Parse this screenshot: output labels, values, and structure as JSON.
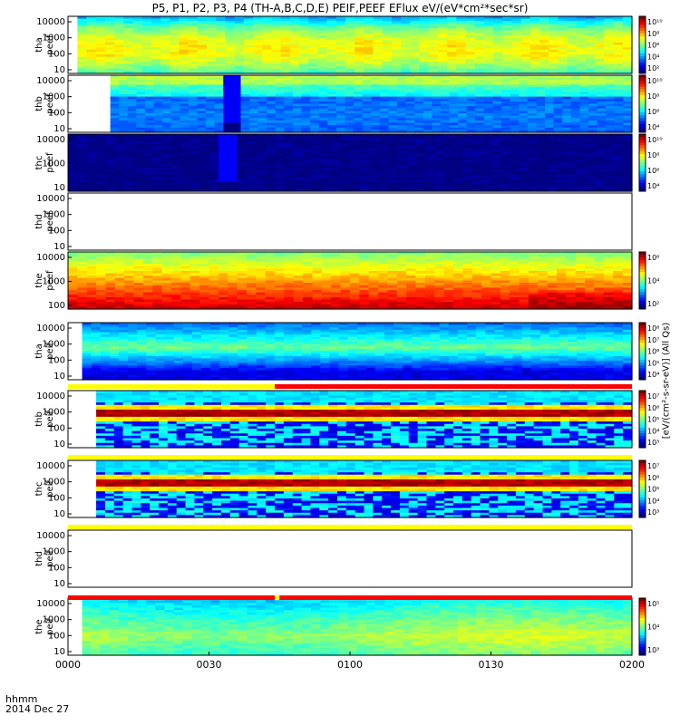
{
  "title": "P5, P1, P2, P3, P4 (TH-A,B,C,D,E) PEIF,PEEF EFlux eV/(eV*cm²*sec*sr)",
  "colorbar_title": "[eV/(cm²-s-sr-eV)] (All Qs)",
  "time_row_label": "hhmm",
  "date_label": "2014 Dec 27",
  "chart_data": {
    "type": "heatmap",
    "x_ticks": [
      "0000",
      "0030",
      "0100",
      "0130",
      "0200"
    ],
    "x_range": [
      "0000",
      "0200"
    ],
    "panels": [
      {
        "id": "tha_peef",
        "ylabel": [
          "tha",
          "peef"
        ],
        "yticks": [
          "10",
          "100",
          "1000",
          "10000"
        ],
        "data_start": "0002",
        "cb_ticks": [
          "10¹⁰",
          "10⁸",
          "10⁶",
          "10⁴",
          "10²"
        ],
        "profile": "tha"
      },
      {
        "id": "thb_peef",
        "ylabel": [
          "thb",
          "peef"
        ],
        "yticks": [
          "10",
          "100",
          "1000",
          "10000"
        ],
        "data_start": "0009",
        "gap": [
          "0032",
          "0036"
        ],
        "cb_ticks": [
          "10¹⁰",
          "10⁸",
          "10⁶",
          "10⁴"
        ],
        "profile": "thb"
      },
      {
        "id": "thc_peef",
        "ylabel": [
          "thc",
          "peef"
        ],
        "yticks": [
          "10",
          "1000",
          "10000"
        ],
        "data_start": "0000",
        "gap": [
          "0031",
          "0035"
        ],
        "cb_ticks": [
          "10¹⁰",
          "10⁸",
          "10⁶",
          "10⁴"
        ],
        "profile": "thc"
      },
      {
        "id": "thd_peef",
        "ylabel": [
          "thd",
          "peef"
        ],
        "yticks": [
          "10",
          "100",
          "1000",
          "10000"
        ],
        "data_start": null,
        "cb_ticks": [],
        "profile": "none"
      },
      {
        "id": "the_peef",
        "ylabel": [
          "the",
          "peef"
        ],
        "yticks": [
          "100",
          "1000",
          "10000"
        ],
        "data_start": "0000",
        "cb_ticks": [
          "10⁶",
          "10⁴",
          "10²"
        ],
        "profile": "the"
      },
      {
        "id": "tha_peif",
        "ylabel": [
          "tha",
          "peif"
        ],
        "yticks": [
          "10",
          "100",
          "1000",
          "10000"
        ],
        "data_start": "0003",
        "cb_ticks": [
          "10⁸",
          "10⁷",
          "10⁶",
          "10⁵",
          "10⁴"
        ],
        "profile": "tha_i"
      },
      {
        "id": "thb_peif",
        "ylabel": [
          "thb",
          "peif"
        ],
        "yticks": [
          "10",
          "100",
          "1000",
          "10000"
        ],
        "data_start": "0006",
        "cb_ticks": [
          "10⁷",
          "10⁶",
          "10⁵",
          "10⁴",
          "10³"
        ],
        "profile": "ion"
      },
      {
        "id": "thc_peif",
        "ylabel": [
          "thc",
          "peif"
        ],
        "yticks": [
          "10",
          "100",
          "1000",
          "10000"
        ],
        "data_start": "0006",
        "cb_ticks": [
          "10⁷",
          "10⁶",
          "10⁵",
          "10⁴",
          "10³"
        ],
        "profile": "ion"
      },
      {
        "id": "thd_peif",
        "ylabel": [
          "thd",
          "peif"
        ],
        "yticks": [
          "10",
          "100",
          "1000",
          "10000"
        ],
        "data_start": null,
        "cb_ticks": [],
        "profile": "none"
      },
      {
        "id": "the_peif",
        "ylabel": [
          "the",
          "peif"
        ],
        "yticks": [
          "10",
          "100",
          "1000",
          "10000"
        ],
        "data_start": "0003",
        "cb_ticks": [
          "10⁵",
          "10⁴",
          "10³"
        ],
        "profile": "the_i"
      }
    ],
    "status_bars": [
      {
        "segments": [
          {
            "from": "0000",
            "to": "0044",
            "color": "#ffff00"
          },
          {
            "from": "0044",
            "to": "0200",
            "color": "#ff0000"
          }
        ]
      },
      {
        "segments": [
          {
            "from": "0000",
            "to": "0200",
            "color": "#ffff00"
          }
        ]
      },
      {
        "segments": [
          {
            "from": "0000",
            "to": "0200",
            "color": "#ffff00"
          }
        ]
      },
      {
        "segments": [
          {
            "from": "0000",
            "to": "0044",
            "color": "#ff0000"
          },
          {
            "from": "0044",
            "to": "0045",
            "color": "#ffff00"
          },
          {
            "from": "0045",
            "to": "0200",
            "color": "#ff0000"
          }
        ]
      }
    ]
  }
}
